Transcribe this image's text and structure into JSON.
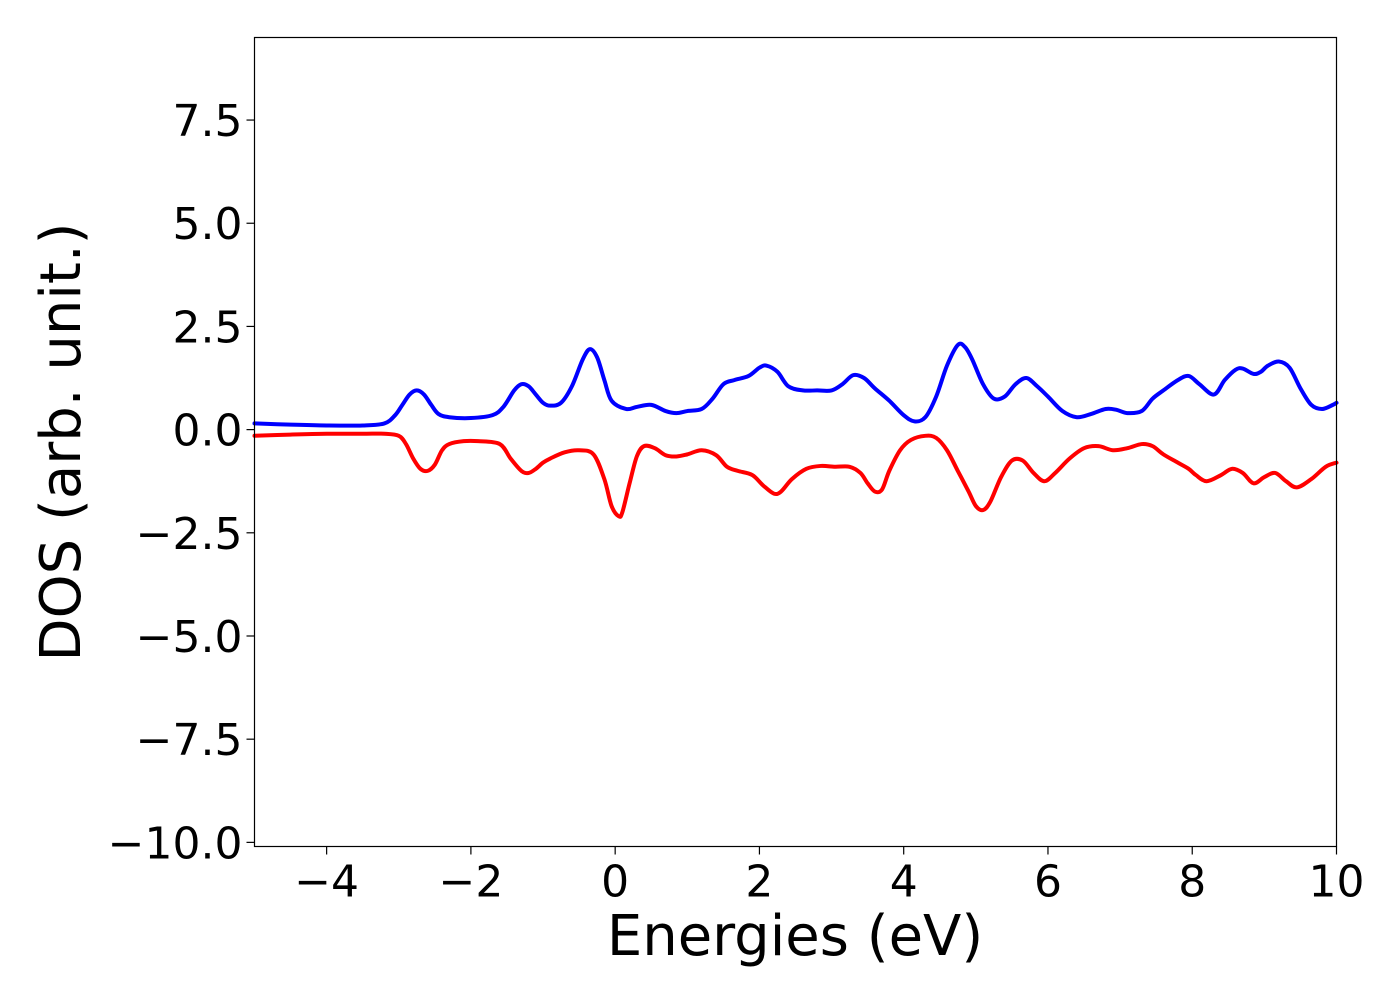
{
  "chart_data": {
    "type": "line",
    "title": "",
    "xlabel": "Energies (eV)",
    "ylabel": "DOS (arb. unit.)",
    "xlim": [
      -5,
      10
    ],
    "ylim": [
      -10.1,
      9.5
    ],
    "grid": false,
    "legend": "none",
    "x_ticks": [
      -4,
      -2,
      0,
      2,
      4,
      6,
      8,
      10
    ],
    "x_tick_labels": [
      "−4",
      "−2",
      "0",
      "2",
      "4",
      "6",
      "8",
      "10"
    ],
    "y_ticks": [
      7.5,
      5.0,
      2.5,
      0.0,
      -2.5,
      -5.0,
      -7.5,
      -10.0
    ],
    "y_tick_labels": [
      "7.5",
      "5.0",
      "2.5",
      "0.0",
      "−2.5",
      "−5.0",
      "−7.5",
      "−10.0"
    ],
    "series": [
      {
        "color": "#0000ff",
        "x": [
          -5.0,
          -4.5,
          -4.0,
          -3.5,
          -3.2,
          -3.05,
          -2.95,
          -2.85,
          -2.75,
          -2.65,
          -2.55,
          -2.45,
          -2.3,
          -2.0,
          -1.7,
          -1.55,
          -1.4,
          -1.3,
          -1.2,
          -1.1,
          -1.0,
          -0.9,
          -0.75,
          -0.6,
          -0.45,
          -0.35,
          -0.25,
          -0.15,
          -0.05,
          0.15,
          0.3,
          0.5,
          0.7,
          0.85,
          1.0,
          1.2,
          1.35,
          1.5,
          1.65,
          1.85,
          2.0,
          2.1,
          2.25,
          2.4,
          2.6,
          2.8,
          3.0,
          3.15,
          3.3,
          3.45,
          3.6,
          3.8,
          4.0,
          4.15,
          4.3,
          4.45,
          4.6,
          4.75,
          4.85,
          4.95,
          5.1,
          5.25,
          5.4,
          5.55,
          5.7,
          5.85,
          6.0,
          6.2,
          6.4,
          6.6,
          6.8,
          6.95,
          7.1,
          7.3,
          7.45,
          7.6,
          7.8,
          7.95,
          8.1,
          8.3,
          8.45,
          8.6,
          8.7,
          8.85,
          8.95,
          9.05,
          9.2,
          9.35,
          9.5,
          9.65,
          9.8,
          9.95,
          10.0
        ],
        "y": [
          0.15,
          0.12,
          0.1,
          0.1,
          0.15,
          0.35,
          0.6,
          0.85,
          0.95,
          0.85,
          0.6,
          0.38,
          0.3,
          0.28,
          0.35,
          0.55,
          0.95,
          1.1,
          1.05,
          0.85,
          0.65,
          0.58,
          0.65,
          1.05,
          1.7,
          1.95,
          1.75,
          1.2,
          0.7,
          0.5,
          0.55,
          0.6,
          0.45,
          0.4,
          0.45,
          0.5,
          0.75,
          1.1,
          1.2,
          1.3,
          1.5,
          1.55,
          1.4,
          1.05,
          0.95,
          0.95,
          0.95,
          1.1,
          1.32,
          1.25,
          1.0,
          0.7,
          0.35,
          0.2,
          0.3,
          0.8,
          1.55,
          2.05,
          2.0,
          1.7,
          1.1,
          0.75,
          0.8,
          1.1,
          1.25,
          1.05,
          0.8,
          0.45,
          0.3,
          0.38,
          0.5,
          0.48,
          0.4,
          0.45,
          0.75,
          0.95,
          1.2,
          1.3,
          1.1,
          0.85,
          1.2,
          1.45,
          1.48,
          1.35,
          1.4,
          1.55,
          1.65,
          1.5,
          1.0,
          0.6,
          0.5,
          0.6,
          0.65
        ]
      },
      {
        "color": "#ff0000",
        "x": [
          -5.0,
          -4.5,
          -4.0,
          -3.5,
          -3.2,
          -3.0,
          -2.9,
          -2.8,
          -2.7,
          -2.6,
          -2.5,
          -2.4,
          -2.3,
          -2.1,
          -1.9,
          -1.6,
          -1.45,
          -1.3,
          -1.2,
          -1.1,
          -1.0,
          -0.9,
          -0.7,
          -0.5,
          -0.3,
          -0.15,
          -0.05,
          0.05,
          0.1,
          0.2,
          0.3,
          0.4,
          0.55,
          0.7,
          0.85,
          1.0,
          1.2,
          1.4,
          1.55,
          1.7,
          1.9,
          2.05,
          2.2,
          2.3,
          2.45,
          2.65,
          2.85,
          3.05,
          3.25,
          3.4,
          3.5,
          3.6,
          3.7,
          3.8,
          3.95,
          4.1,
          4.3,
          4.45,
          4.6,
          4.75,
          4.9,
          5.0,
          5.1,
          5.2,
          5.35,
          5.5,
          5.65,
          5.8,
          5.95,
          6.1,
          6.3,
          6.5,
          6.7,
          6.9,
          7.1,
          7.3,
          7.45,
          7.6,
          7.8,
          7.95,
          8.05,
          8.2,
          8.4,
          8.55,
          8.7,
          8.85,
          9.0,
          9.15,
          9.3,
          9.45,
          9.65,
          9.85,
          10.0
        ],
        "y": [
          -0.15,
          -0.12,
          -0.1,
          -0.1,
          -0.1,
          -0.15,
          -0.35,
          -0.7,
          -0.95,
          -1.0,
          -0.85,
          -0.5,
          -0.35,
          -0.28,
          -0.28,
          -0.35,
          -0.7,
          -1.0,
          -1.05,
          -0.95,
          -0.8,
          -0.7,
          -0.55,
          -0.5,
          -0.6,
          -1.2,
          -1.85,
          -2.1,
          -2.0,
          -1.3,
          -0.65,
          -0.4,
          -0.45,
          -0.62,
          -0.65,
          -0.6,
          -0.5,
          -0.62,
          -0.9,
          -1.0,
          -1.1,
          -1.35,
          -1.55,
          -1.5,
          -1.2,
          -0.95,
          -0.88,
          -0.9,
          -0.9,
          -1.05,
          -1.3,
          -1.5,
          -1.45,
          -1.0,
          -0.5,
          -0.25,
          -0.15,
          -0.2,
          -0.5,
          -1.0,
          -1.5,
          -1.85,
          -1.95,
          -1.75,
          -1.15,
          -0.75,
          -0.75,
          -1.05,
          -1.25,
          -1.05,
          -0.7,
          -0.45,
          -0.4,
          -0.5,
          -0.45,
          -0.35,
          -0.4,
          -0.6,
          -0.8,
          -0.95,
          -1.1,
          -1.25,
          -1.1,
          -0.95,
          -1.05,
          -1.3,
          -1.15,
          -1.05,
          -1.25,
          -1.4,
          -1.2,
          -0.9,
          -0.8
        ]
      }
    ]
  }
}
